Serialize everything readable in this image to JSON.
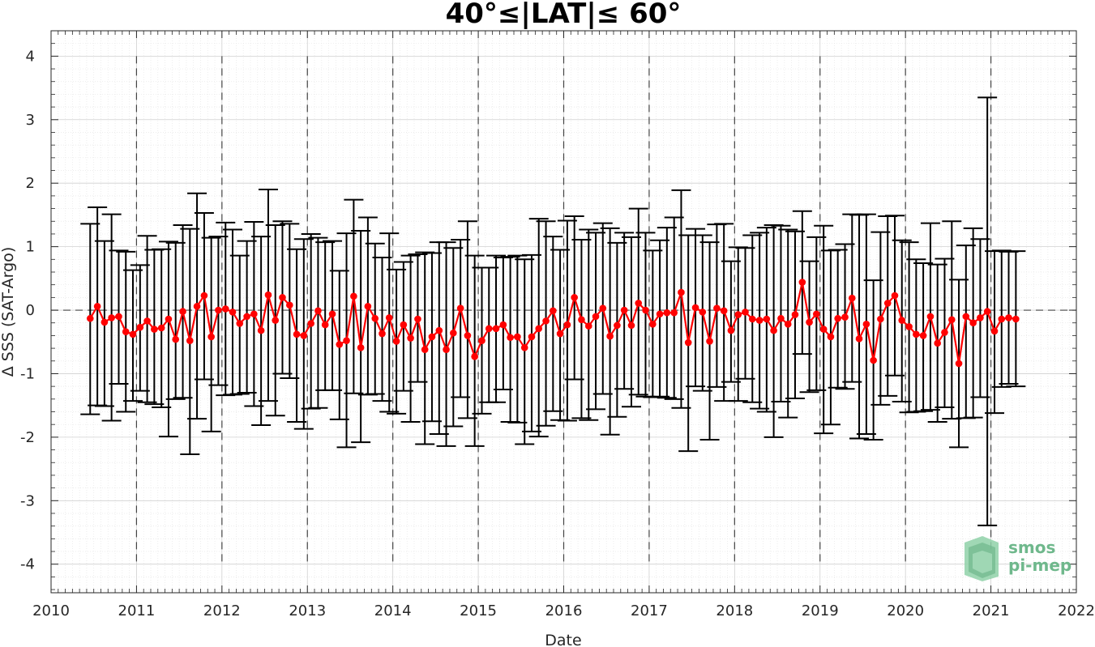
{
  "chart_data": {
    "type": "line",
    "title": "40°≤|LAT|≤ 60°",
    "xlabel": "Date",
    "ylabel": "Δ SSS (SAT-Argo)",
    "xlim": [
      2010,
      2022
    ],
    "ylim": [
      -4.45,
      4.4
    ],
    "x_ticks": [
      "2010",
      "2011",
      "2012",
      "2013",
      "2014",
      "2015",
      "2016",
      "2017",
      "2018",
      "2019",
      "2020",
      "2021",
      "2022"
    ],
    "y_ticks": [
      "-4",
      "-3",
      "-2",
      "-1",
      "0",
      "1",
      "2",
      "3",
      "4"
    ],
    "grid": true,
    "reference_line_y": 0,
    "year_boundaries": [
      2011,
      2012,
      2013,
      2014,
      2015,
      2016,
      2017,
      2018,
      2019,
      2020,
      2021
    ],
    "colors": {
      "series": "#ff0000",
      "errorbar": "#000000",
      "grid": "#cccccc",
      "logo": "#6fb88c"
    },
    "series": [
      {
        "x": [
          2010.458,
          2010.542,
          2010.625,
          2010.708,
          2010.792,
          2010.875,
          2010.958,
          2011.042,
          2011.125,
          2011.208,
          2011.292,
          2011.375,
          2011.458,
          2011.542,
          2011.625,
          2011.708,
          2011.792,
          2011.875,
          2011.958,
          2012.042,
          2012.125,
          2012.208,
          2012.292,
          2012.375,
          2012.458,
          2012.542,
          2012.625,
          2012.708,
          2012.792,
          2012.875,
          2012.958,
          2013.042,
          2013.125,
          2013.208,
          2013.292,
          2013.375,
          2013.458,
          2013.542,
          2013.625,
          2013.708,
          2013.792,
          2013.875,
          2013.958,
          2014.042,
          2014.125,
          2014.208,
          2014.292,
          2014.375,
          2014.458,
          2014.542,
          2014.625,
          2014.708,
          2014.792,
          2014.875,
          2014.958,
          2015.042,
          2015.125,
          2015.208,
          2015.292,
          2015.375,
          2015.458,
          2015.542,
          2015.625,
          2015.708,
          2015.792,
          2015.875,
          2015.958,
          2016.042,
          2016.125,
          2016.208,
          2016.292,
          2016.375,
          2016.458,
          2016.542,
          2016.625,
          2016.708,
          2016.792,
          2016.875,
          2016.958,
          2017.042,
          2017.125,
          2017.208,
          2017.292,
          2017.375,
          2017.458,
          2017.542,
          2017.625,
          2017.708,
          2017.792,
          2017.875,
          2017.958,
          2018.042,
          2018.125,
          2018.208,
          2018.292,
          2018.375,
          2018.458,
          2018.542,
          2018.625,
          2018.708,
          2018.792,
          2018.875,
          2018.958,
          2019.042,
          2019.125,
          2019.208,
          2019.292,
          2019.375,
          2019.458,
          2019.542,
          2019.625,
          2019.708,
          2019.792,
          2019.875,
          2019.958,
          2020.042,
          2020.125,
          2020.208,
          2020.292,
          2020.375,
          2020.458,
          2020.542,
          2020.625,
          2020.708,
          2020.792,
          2020.875,
          2020.958,
          2021.042,
          2021.125,
          2021.208,
          2021.292
        ],
        "y": [
          -0.13,
          0.06,
          -0.19,
          -0.12,
          -0.1,
          -0.34,
          -0.38,
          -0.27,
          -0.17,
          -0.3,
          -0.28,
          -0.14,
          -0.46,
          -0.02,
          -0.48,
          0.06,
          0.23,
          -0.42,
          0.0,
          0.02,
          -0.03,
          -0.21,
          -0.1,
          -0.06,
          -0.32,
          0.24,
          -0.16,
          0.2,
          0.08,
          -0.38,
          -0.4,
          -0.21,
          -0.01,
          -0.23,
          -0.06,
          -0.54,
          -0.48,
          0.22,
          -0.59,
          0.06,
          -0.13,
          -0.37,
          -0.12,
          -0.49,
          -0.23,
          -0.44,
          -0.14,
          -0.62,
          -0.42,
          -0.32,
          -0.62,
          -0.36,
          0.03,
          -0.4,
          -0.73,
          -0.48,
          -0.29,
          -0.29,
          -0.23,
          -0.43,
          -0.42,
          -0.59,
          -0.42,
          -0.29,
          -0.17,
          -0.01,
          -0.37,
          -0.23,
          0.2,
          -0.15,
          -0.25,
          -0.1,
          0.03,
          -0.41,
          -0.24,
          0.0,
          -0.24,
          0.11,
          0.0,
          -0.22,
          -0.06,
          -0.04,
          -0.04,
          0.28,
          -0.51,
          0.04,
          -0.03,
          -0.49,
          0.03,
          -0.01,
          -0.32,
          -0.07,
          -0.03,
          -0.14,
          -0.16,
          -0.14,
          -0.32,
          -0.13,
          -0.22,
          -0.07,
          0.44,
          -0.19,
          -0.06,
          -0.3,
          -0.42,
          -0.13,
          -0.11,
          0.19,
          -0.45,
          -0.22,
          -0.79,
          -0.14,
          0.11,
          0.23,
          -0.16,
          -0.26,
          -0.38,
          -0.4,
          -0.1,
          -0.52,
          -0.35,
          -0.15,
          -0.84,
          -0.1,
          -0.2,
          -0.12,
          -0.02,
          -0.33,
          -0.14,
          -0.12,
          -0.14
        ],
        "upper": [
          1.36,
          1.62,
          1.09,
          1.51,
          0.94,
          0.92,
          0.63,
          0.71,
          1.17,
          0.95,
          0.96,
          1.08,
          1.06,
          1.34,
          1.28,
          1.84,
          1.53,
          1.14,
          1.16,
          1.38,
          1.27,
          0.86,
          1.09,
          1.39,
          1.16,
          1.9,
          1.34,
          1.4,
          1.36,
          0.96,
          1.12,
          1.2,
          1.14,
          1.07,
          1.09,
          0.62,
          1.21,
          1.74,
          1.25,
          1.46,
          1.05,
          0.83,
          1.21,
          0.64,
          0.76,
          0.86,
          0.88,
          0.91,
          0.9,
          1.07,
          1.07,
          0.98,
          1.11,
          1.4,
          0.86,
          0.67,
          0.67,
          0.86,
          0.83,
          0.84,
          0.86,
          0.8,
          0.87,
          1.44,
          1.4,
          1.16,
          0.95,
          1.41,
          1.48,
          1.11,
          1.27,
          1.22,
          1.37,
          1.29,
          1.06,
          1.22,
          1.15,
          1.6,
          1.22,
          0.94,
          1.1,
          1.3,
          1.46,
          1.89,
          1.18,
          1.28,
          1.18,
          1.07,
          1.35,
          1.36,
          0.77,
          0.99,
          0.98,
          1.18,
          1.22,
          1.3,
          1.34,
          1.33,
          1.27,
          1.24,
          1.56,
          0.77,
          1.15,
          1.33,
          0.94,
          0.95,
          1.04,
          1.51,
          1.5,
          1.51,
          0.47,
          1.23,
          1.48,
          1.49,
          1.1,
          1.07,
          0.8,
          0.74,
          1.37,
          0.72,
          0.81,
          1.4,
          0.48,
          1.02,
          1.29,
          1.12,
          3.35,
          0.93,
          0.94,
          0.92,
          0.93
        ],
        "lower": [
          -1.64,
          -1.5,
          -1.51,
          -1.74,
          -1.16,
          -1.6,
          -1.43,
          -1.27,
          -1.45,
          -1.48,
          -1.53,
          -1.99,
          -1.4,
          -1.38,
          -2.27,
          -1.71,
          -1.09,
          -1.91,
          -1.18,
          -1.34,
          -1.33,
          -1.32,
          -1.3,
          -1.51,
          -1.81,
          -1.43,
          -1.66,
          -1.0,
          -1.07,
          -1.76,
          -1.87,
          -1.55,
          -1.54,
          -1.26,
          -1.26,
          -1.72,
          -2.16,
          -1.31,
          -2.08,
          -1.33,
          -1.32,
          -1.43,
          -1.6,
          -1.63,
          -1.27,
          -1.76,
          -1.13,
          -2.11,
          -1.75,
          -1.95,
          -2.14,
          -1.83,
          -1.37,
          -1.7,
          -2.14,
          -1.63,
          -1.45,
          -1.45,
          -1.25,
          -1.76,
          -1.77,
          -2.11,
          -1.91,
          -1.99,
          -1.82,
          -1.59,
          -1.73,
          -1.74,
          -1.09,
          -1.7,
          -1.73,
          -1.56,
          -1.32,
          -1.96,
          -1.68,
          -1.24,
          -1.52,
          -1.33,
          -1.36,
          -1.37,
          -1.36,
          -1.38,
          -1.4,
          -1.54,
          -2.22,
          -1.2,
          -1.27,
          -2.04,
          -1.21,
          -1.43,
          -1.13,
          -1.43,
          -1.08,
          -1.45,
          -1.55,
          -1.6,
          -2.0,
          -1.44,
          -1.69,
          -1.39,
          -0.69,
          -1.29,
          -1.26,
          -1.94,
          -1.8,
          -1.22,
          -1.24,
          -1.13,
          -2.02,
          -1.95,
          -2.04,
          -1.49,
          -1.35,
          -1.03,
          -1.44,
          -1.61,
          -1.6,
          -1.59,
          -1.57,
          -1.76,
          -1.53,
          -1.71,
          -2.16,
          -1.7,
          -1.69,
          -1.37,
          -3.39,
          -1.62,
          -1.21,
          -1.16,
          -1.2
        ]
      }
    ]
  },
  "logo": {
    "line1": "smos",
    "line2": "pi-mep"
  }
}
